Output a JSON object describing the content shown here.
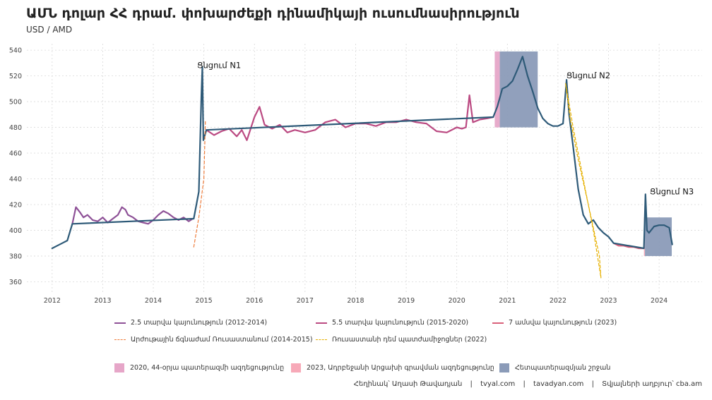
{
  "title": "ԱՄՆ դոլար ՀՀ դրամ. փոխարժեքի դինամիկայի ուսումնասիրություն",
  "subtitle": "USD / AMD",
  "caption": {
    "author": "Հեղինակ՝ Աղասի Թավադյան",
    "site1": "tvyal.com",
    "site2": "tavadyan.com",
    "source": "Տվյալների աղբյուր՝ cba.am",
    "separator": "|"
  },
  "colors": {
    "purple": "#8e5197",
    "magenta": "#bb4a82",
    "pink": "#d9607a",
    "teal": "#2e5a78",
    "orange_dash": "#ee7c3b",
    "yellow_dash": "#e6b000",
    "war_2020": "#e6a6c8",
    "war_2023": "#f7a9b8",
    "post_war": "#8b9bb8"
  },
  "legend": {
    "lines": [
      {
        "label": "2.5 տարվա կայունություն (2012-2014)",
        "color": "#8e5197",
        "style": "solid"
      },
      {
        "label": "5.5 տարվա կայունություն (2015-2020)",
        "color": "#bb4a82",
        "style": "solid"
      },
      {
        "label": "7 ամսվա կայունություն (2023)",
        "color": "#d9607a",
        "style": "solid"
      },
      {
        "label": "Արժութային ճգնաժամ Ռուսաստանում (2014-2015)",
        "color": "#ee7c3b",
        "style": "dashed"
      },
      {
        "label": "Ռուսաստանի դեմ պատժամիջոցներ (2022)",
        "color": "#e6b000",
        "style": "dashed"
      }
    ],
    "boxes": [
      {
        "label": "2020, 44-օրյա պատերազմի ազդեցությունը",
        "color": "#e6a6c8"
      },
      {
        "label": "2023, Ադրբեջանի Արցախի գրավման ազդեցությունը",
        "color": "#f7a9b8"
      },
      {
        "label": "Հետպատերազմյան շրջան",
        "color": "#8b9bb8"
      }
    ]
  },
  "chart_data": {
    "type": "line",
    "title": "ԱՄՆ դոլար ՀՀ դրամ. փոխարժեքի դինամիկայի ուսումնասիրություն",
    "subtitle": "USD / AMD",
    "xlabel": "",
    "ylabel": "",
    "xlim": [
      2011.5,
      2024.85
    ],
    "ylim": [
      352,
      545
    ],
    "xticks": [
      2012,
      2013,
      2014,
      2015,
      2016,
      2017,
      2018,
      2019,
      2020,
      2021,
      2022,
      2023,
      2024
    ],
    "yticks": [
      360,
      380,
      400,
      420,
      440,
      460,
      480,
      500,
      520,
      540
    ],
    "grid": true,
    "legend_position": "bottom",
    "series": [
      {
        "name": "2.5 տարվա կայունություն (2012-2014)",
        "color": "#8e5197",
        "x": [
          2012.4,
          2012.47,
          2012.55,
          2012.62,
          2012.7,
          2012.8,
          2012.9,
          2013.0,
          2013.1,
          2013.2,
          2013.3,
          2013.38,
          2013.45,
          2013.5,
          2013.6,
          2013.7,
          2013.8,
          2013.9,
          2014.0,
          2014.1,
          2014.2,
          2014.3,
          2014.4,
          2014.5,
          2014.6,
          2014.7,
          2014.78
        ],
        "values": [
          405,
          418,
          414,
          410,
          412,
          408,
          407,
          410,
          406,
          409,
          412,
          418,
          416,
          412,
          410,
          407,
          406,
          405,
          408,
          412,
          415,
          413,
          410,
          408,
          410,
          407,
          409
        ]
      },
      {
        "name": "5.5 տարվա կայունություն (2015-2020)",
        "color": "#bb4a82",
        "x": [
          2015.05,
          2015.2,
          2015.35,
          2015.5,
          2015.65,
          2015.75,
          2015.85,
          2016.0,
          2016.1,
          2016.2,
          2016.35,
          2016.5,
          2016.65,
          2016.8,
          2017.0,
          2017.2,
          2017.4,
          2017.6,
          2017.8,
          2018.0,
          2018.2,
          2018.4,
          2018.6,
          2018.8,
          2019.0,
          2019.2,
          2019.4,
          2019.6,
          2019.8,
          2020.0,
          2020.1,
          2020.18,
          2020.25,
          2020.32,
          2020.45,
          2020.6,
          2020.72
        ],
        "values": [
          478,
          474,
          477,
          479,
          473,
          478,
          470,
          488,
          496,
          482,
          479,
          482,
          476,
          478,
          476,
          478,
          484,
          486,
          480,
          483,
          483,
          481,
          484,
          484,
          486,
          484,
          483,
          477,
          476,
          480,
          479,
          480,
          505,
          484,
          486,
          487,
          488
        ]
      },
      {
        "name": "7 ամսվա կայունություն (2023)",
        "color": "#d9607a",
        "x": [
          2023.1,
          2023.2,
          2023.3,
          2023.4,
          2023.5,
          2023.6,
          2023.7
        ],
        "values": [
          390,
          388,
          388,
          387,
          387,
          386,
          386
        ]
      },
      {
        "name": "",
        "color": "#2e5a78",
        "x": [
          2012.0,
          2012.1,
          2012.2,
          2012.3,
          2012.4,
          2014.8,
          2014.9,
          2014.95,
          2014.97,
          2014.99,
          2015.05,
          2020.72,
          2020.8,
          2020.9,
          2021.0,
          2021.1,
          2021.2,
          2021.3,
          2021.4,
          2021.5,
          2021.6,
          2021.7,
          2021.8,
          2021.9,
          2022.0,
          2022.1,
          2022.17,
          2022.22,
          2022.3,
          2022.4,
          2022.5,
          2022.6,
          2022.7,
          2022.8,
          2022.9,
          2023.0,
          2023.1,
          2023.7,
          2023.73,
          2023.76,
          2023.8,
          2023.9,
          2024.0,
          2024.1,
          2024.2,
          2024.26
        ],
        "values": [
          386,
          388,
          390,
          392,
          405,
          409,
          430,
          505,
          527,
          470,
          478,
          488,
          496,
          510,
          512,
          516,
          525,
          535,
          520,
          508,
          495,
          487,
          483,
          481,
          481,
          483,
          517,
          490,
          465,
          432,
          412,
          405,
          408,
          402,
          398,
          395,
          390,
          386,
          428,
          400,
          398,
          403,
          404,
          404,
          402,
          389
        ]
      },
      {
        "name": "Արժութային ճգնաժամ Ռուսաստանում (2014-2015)",
        "color": "#ee7c3b",
        "dashed": true,
        "x": [
          2014.8,
          2014.9,
          2015.0,
          2015.03
        ],
        "values": [
          387,
          410,
          440,
          485
        ]
      },
      {
        "name": "Ռուսաստանի դեմ պատժամիջոցներ (2022)",
        "color": "#e6b000",
        "dashed": true,
        "x": [
          2022.15,
          2022.3,
          2022.5,
          2022.7,
          2022.85,
          2022.82,
          2022.6,
          2022.4,
          2022.25,
          2022.15
        ],
        "values": [
          514,
          480,
          440,
          400,
          363,
          380,
          420,
          455,
          485,
          514
        ]
      }
    ],
    "regions": [
      {
        "label": "2020, 44-օրյա պատերազմի ազդեցությունը",
        "x0": 2020.75,
        "x1": 2020.85,
        "y0": 480,
        "y1": 539,
        "color": "#e6a6c8"
      },
      {
        "label": "Հետպատերազմյան շրջան",
        "x0": 2020.85,
        "x1": 2021.6,
        "y0": 480,
        "y1": 539,
        "color": "#8b9bb8"
      },
      {
        "label": "2023, Ադրբեջանի Արցախի գրավման ազդեցությունը",
        "x0": 2023.7,
        "x1": 2023.72,
        "y0": 380,
        "y1": 410,
        "color": "#f7a9b8"
      },
      {
        "label": "Հետպատերազմյան շրջան",
        "x0": 2023.72,
        "x1": 2024.25,
        "y0": 380,
        "y1": 410,
        "color": "#8b9bb8"
      }
    ],
    "annotations": [
      {
        "text": "Ցնցում N1",
        "x": 2015.3,
        "y": 526
      },
      {
        "text": "Ցնցում N2",
        "x": 2022.6,
        "y": 518
      },
      {
        "text": "Ցնցում N3",
        "x": 2024.25,
        "y": 428
      }
    ]
  }
}
